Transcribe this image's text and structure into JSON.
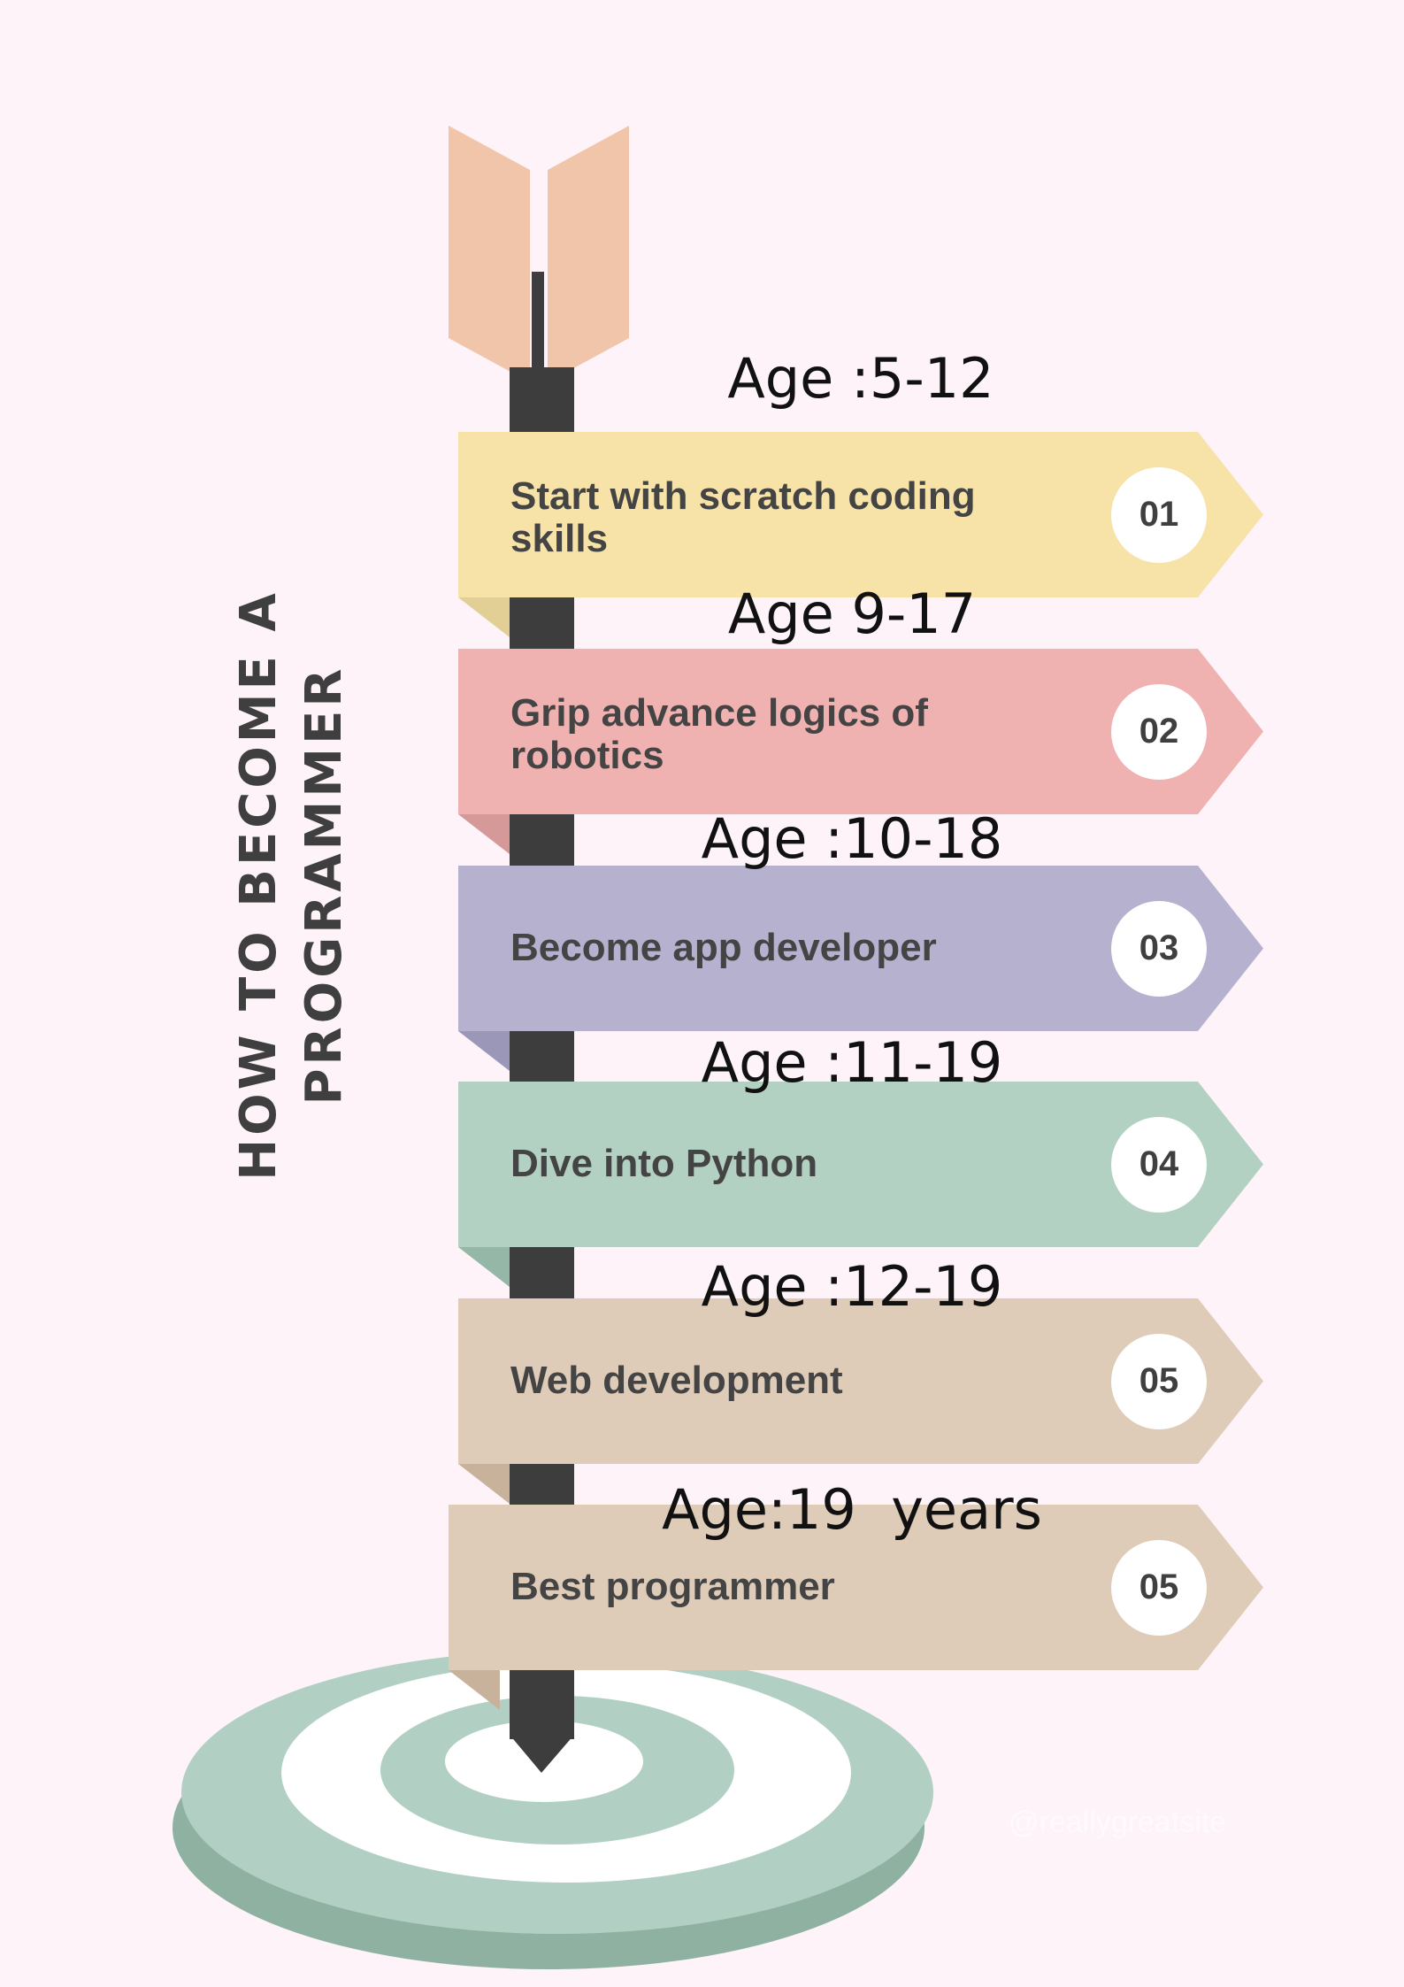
{
  "title_lines": [
    "HOW TO BECOME A",
    "PROGRAMMER"
  ],
  "watermark": "@reallygreatsite",
  "colors": {
    "background": "#fdf3f8",
    "pole": "#3d3d3d",
    "fletching": "#f1c5aa",
    "target_light": "#b2cfc3",
    "target_dark": "#8fb1a2",
    "text": "#444444"
  },
  "steps": [
    {
      "age": "Age :5-12",
      "label": "Start with scratch coding skills",
      "number": "01",
      "color": "#f7e2a8",
      "shade": "#e2cf96"
    },
    {
      "age": "Age 9-17",
      "label": "Grip advance logics of robotics",
      "number": "02",
      "color": "#f0b1b1",
      "shade": "#d69999"
    },
    {
      "age": "Age :10-18",
      "label": "Become app developer",
      "number": "03",
      "color": "#b5b1cf",
      "shade": "#9b97b9"
    },
    {
      "age": "Age :11-19",
      "label": "Dive into Python",
      "number": "04",
      "color": "#b3d1c3",
      "shade": "#95b7a8"
    },
    {
      "age": "Age :12-19",
      "label": "Web development",
      "number": "05",
      "color": "#decbb8",
      "shade": "#c8b29c"
    },
    {
      "age": "Age:19  years",
      "label": "Best programmer",
      "number": "05",
      "color": "#decbb8",
      "shade": "#c8b29c"
    }
  ]
}
